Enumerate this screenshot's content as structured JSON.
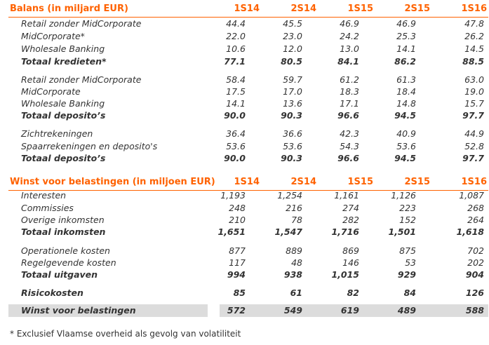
{
  "balance": {
    "title": "Balans (in miljard EUR)",
    "columns": [
      "1S14",
      "2S14",
      "1S15",
      "2S15",
      "1S16"
    ],
    "rows": [
      {
        "label": "Retail zonder MidCorporate",
        "values": [
          "44.4",
          "45.5",
          "46.9",
          "46.9",
          "47.8"
        ],
        "bold": false
      },
      {
        "label": "MidCorporate*",
        "values": [
          "22.0",
          "23.0",
          "24.2",
          "25.3",
          "26.2"
        ],
        "bold": false
      },
      {
        "label": "Wholesale Banking",
        "values": [
          "10.6",
          "12.0",
          "13.0",
          "14.1",
          "14.5"
        ],
        "bold": false
      },
      {
        "label": "Totaal kredieten*",
        "values": [
          "77.1",
          "80.5",
          "84.1",
          "86.2",
          "88.5"
        ],
        "bold": true
      },
      {
        "label": "Retail zonder MidCorporate",
        "values": [
          "58.4",
          "59.7",
          "61.2",
          "61.3",
          "63.0"
        ],
        "bold": false
      },
      {
        "label": "MidCorporate",
        "values": [
          "17.5",
          "17.0",
          "18.3",
          "18.4",
          "19.0"
        ],
        "bold": false
      },
      {
        "label": "Wholesale Banking",
        "values": [
          "14.1",
          "13.6",
          "17.1",
          "14.8",
          "15.7"
        ],
        "bold": false
      },
      {
        "label": "Totaal deposito’s",
        "values": [
          "90.0",
          "90.3",
          "96.6",
          "94.5",
          "97.7"
        ],
        "bold": true
      },
      {
        "label": "Zichtrekeningen",
        "values": [
          "36.4",
          "36.6",
          "42.3",
          "40.9",
          "44.9"
        ],
        "bold": false
      },
      {
        "label": "Spaarrekeningen en deposito's",
        "values": [
          "53.6",
          "53.6",
          "54.3",
          "53.6",
          "52.8"
        ],
        "bold": false
      },
      {
        "label": "Totaal deposito’s",
        "values": [
          "90.0",
          "90.3",
          "96.6",
          "94.5",
          "97.7"
        ],
        "bold": true
      }
    ]
  },
  "profit": {
    "title": "Winst voor belastingen (in miljoen EUR)",
    "columns": [
      "1S14",
      "2S14",
      "1S15",
      "2S15",
      "1S16"
    ],
    "rows": [
      {
        "label": "Interesten",
        "values": [
          "1,193",
          "1,254",
          "1,161",
          "1,126",
          "1,087"
        ],
        "bold": false
      },
      {
        "label": "Commissies",
        "values": [
          "248",
          "216",
          "274",
          "223",
          "268"
        ],
        "bold": false
      },
      {
        "label": "Overige inkomsten",
        "values": [
          "210",
          "78",
          "282",
          "152",
          "264"
        ],
        "bold": false
      },
      {
        "label": "Totaal inkomsten",
        "values": [
          "1,651",
          "1,547",
          "1,716",
          "1,501",
          "1,618"
        ],
        "bold": true
      },
      {
        "label": "Operationele kosten",
        "values": [
          "877",
          "889",
          "869",
          "875",
          "702"
        ],
        "bold": false
      },
      {
        "label": "Regelgevende kosten",
        "values": [
          "117",
          "48",
          "146",
          "53",
          "202"
        ],
        "bold": false
      },
      {
        "label": "Totaal uitgaven",
        "values": [
          "994",
          "938",
          "1,015",
          "929",
          "904"
        ],
        "bold": true
      },
      {
        "label": "Risicokosten",
        "values": [
          "85",
          "61",
          "82",
          "84",
          "126"
        ],
        "bold": true
      },
      {
        "label": "Winst voor belastingen",
        "values": [
          "572",
          "549",
          "619",
          "489",
          "588"
        ],
        "bold": true
      }
    ]
  },
  "footnote": "* Exclusief Vlaamse overheid als gevolg van volatiliteit",
  "colors": {
    "accent": "#ff6200",
    "text": "#333333",
    "highlight_bg": "#dcdcdc"
  }
}
